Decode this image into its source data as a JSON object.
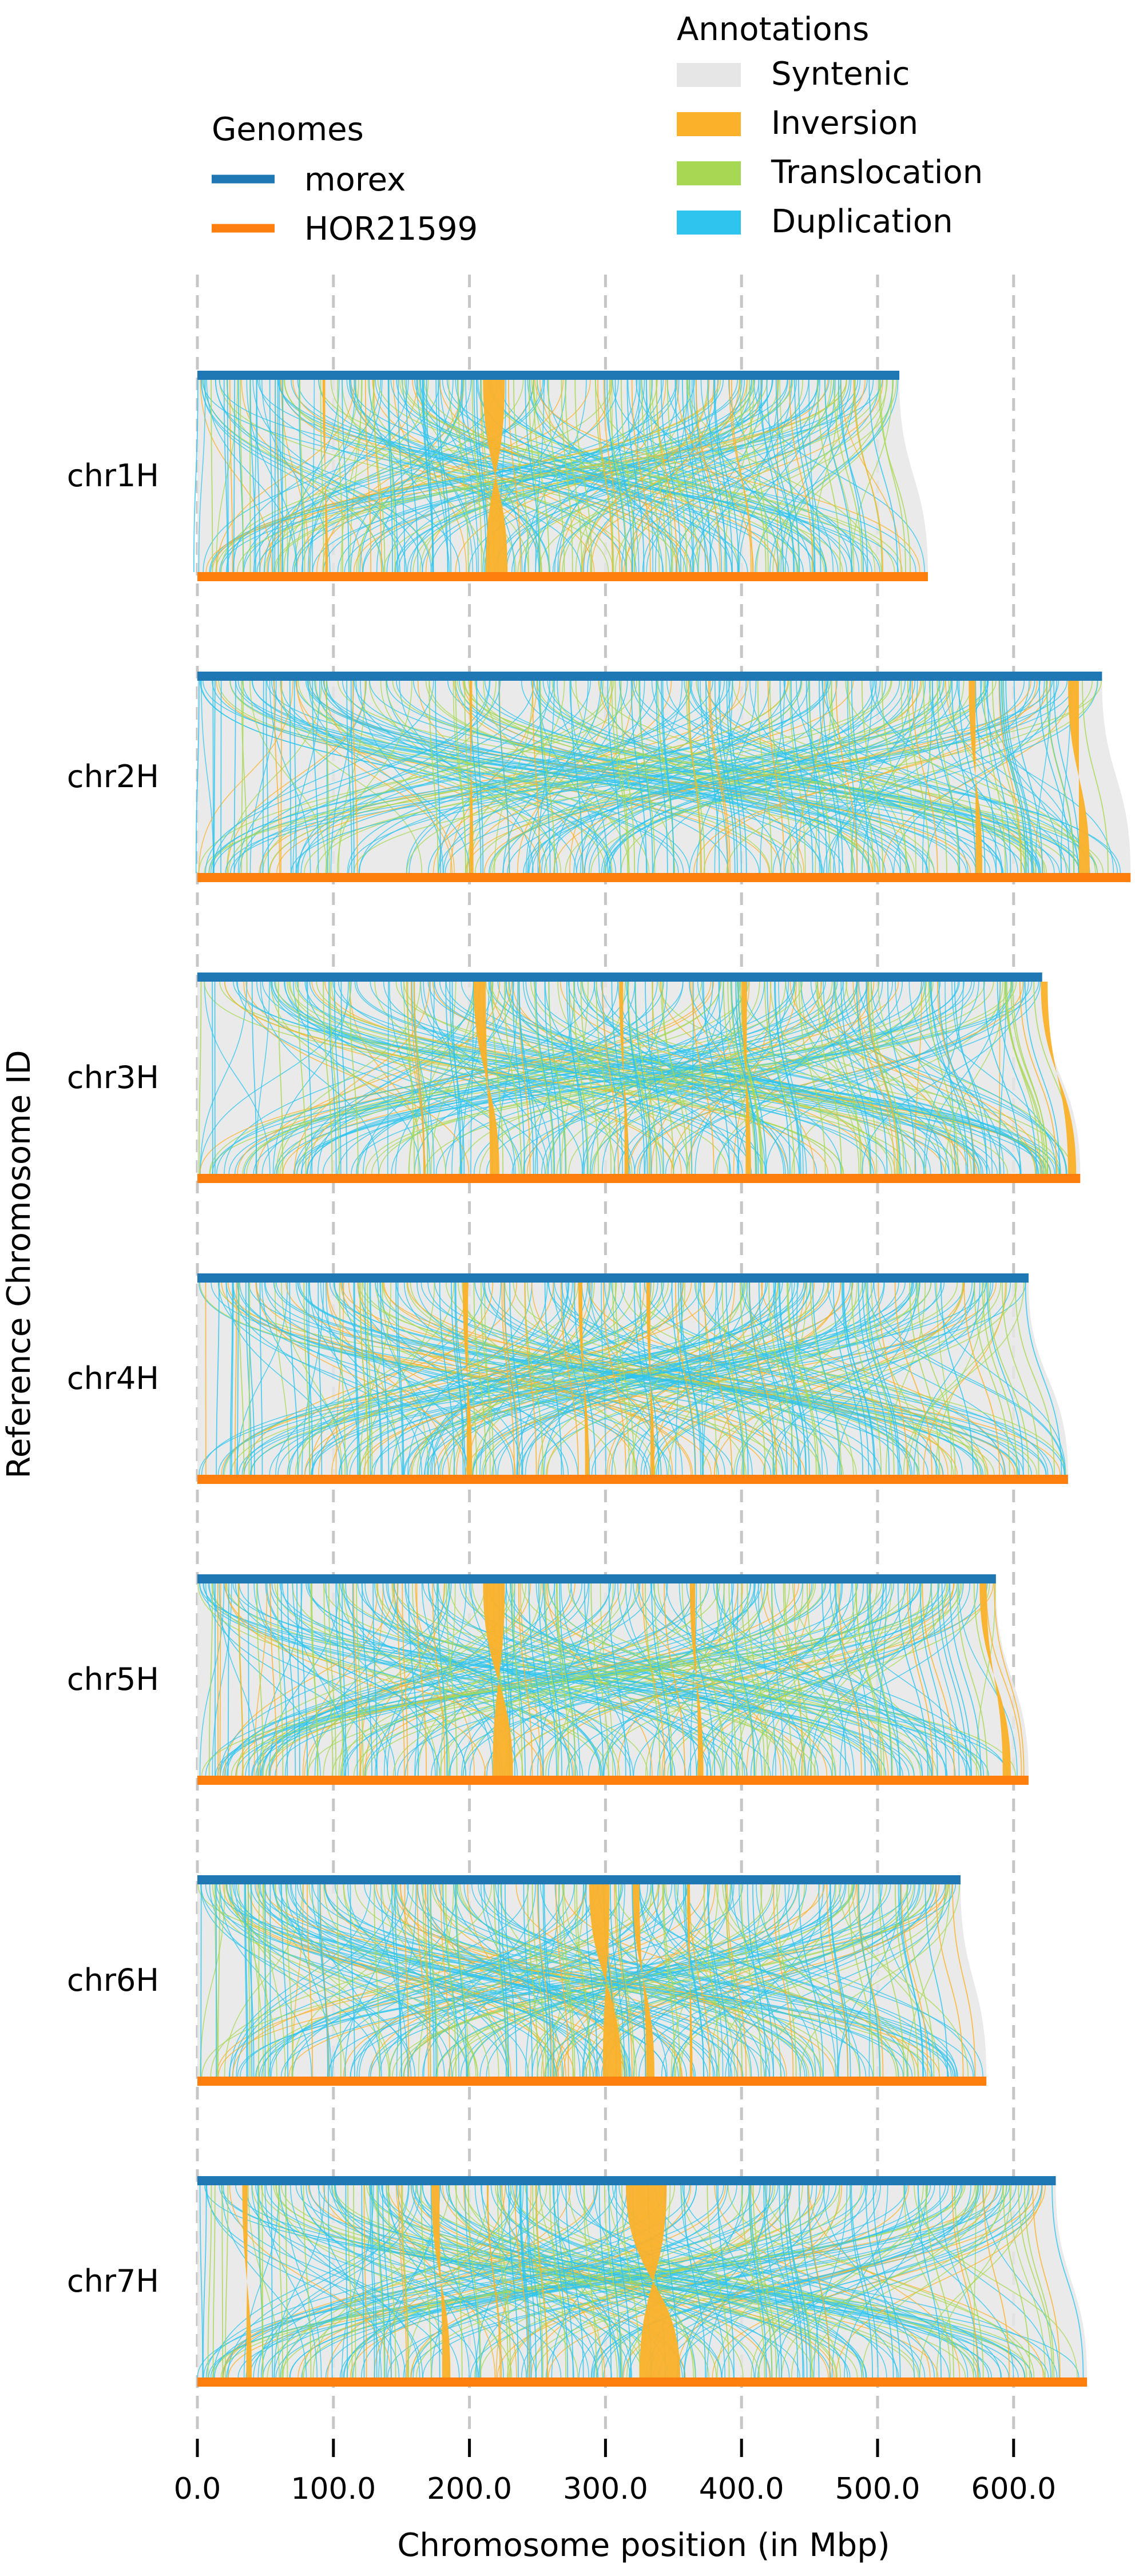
{
  "chart_data": {
    "type": "synteny",
    "xlabel": "Chromosome position (in Mbp)",
    "ylabel": "Reference Chromosome ID",
    "x_ticks": [
      0,
      100,
      200,
      300,
      400,
      500,
      600
    ],
    "x_tick_labels": [
      "0.0",
      "100.0",
      "200.0",
      "300.0",
      "400.0",
      "500.0",
      "600.0"
    ],
    "grid": "vertical dashed",
    "legend_genomes": {
      "title": "Genomes",
      "placement": "top-left",
      "entries": [
        {
          "name": "morex",
          "color": "#1f77b4"
        },
        {
          "name": "HOR21599",
          "color": "#ff7f0e"
        }
      ]
    },
    "legend_annotations": {
      "title": "Annotations",
      "placement": "top-right",
      "entries": [
        {
          "name": "Syntenic",
          "color": "#e6e6e6"
        },
        {
          "name": "Inversion",
          "color": "#fbb12a"
        },
        {
          "name": "Translocation",
          "color": "#a6d854"
        },
        {
          "name": "Duplication",
          "color": "#2ec4ee"
        }
      ]
    },
    "chromosomes": [
      {
        "id": "chr1H",
        "ref_length": 516,
        "qry_length": 537,
        "inversions": [
          {
            "ref": [
              210,
              226
            ],
            "qry": [
              212,
              228
            ]
          },
          {
            "ref": [
              92,
              94
            ],
            "qry": [
              94,
              96
            ]
          }
        ]
      },
      {
        "id": "chr2H",
        "ref_length": 665,
        "qry_length": 686,
        "inversions": [
          {
            "ref": [
              200,
              202
            ],
            "qry": [
              200,
              203
            ]
          },
          {
            "ref": [
              567,
              572
            ],
            "qry": [
              572,
              577
            ]
          },
          {
            "ref": [
              640,
              648
            ],
            "qry": [
              648,
              656
            ]
          }
        ]
      },
      {
        "id": "chr3H",
        "ref_length": 621,
        "qry_length": 649,
        "inversions": [
          {
            "ref": [
              203,
              212
            ],
            "qry": [
              215,
              222
            ]
          },
          {
            "ref": [
              310,
              313
            ],
            "qry": [
              314,
              317
            ]
          },
          {
            "ref": [
              400,
              404
            ],
            "qry": [
              403,
              407
            ]
          },
          {
            "ref": [
              620,
              625
            ],
            "qry": [
              640,
              646
            ]
          }
        ]
      },
      {
        "id": "chr4H",
        "ref_length": 611,
        "qry_length": 640,
        "inversions": [
          {
            "ref": [
              195,
              199
            ],
            "qry": [
              198,
              202
            ]
          },
          {
            "ref": [
              280,
              283
            ],
            "qry": [
              285,
              288
            ]
          },
          {
            "ref": [
              330,
              333
            ],
            "qry": [
              333,
              336
            ]
          }
        ]
      },
      {
        "id": "chr5H",
        "ref_length": 587,
        "qry_length": 611,
        "inversions": [
          {
            "ref": [
              210,
              226
            ],
            "qry": [
              217,
              232
            ]
          },
          {
            "ref": [
              362,
              366
            ],
            "qry": [
              368,
              372
            ]
          },
          {
            "ref": [
              575,
              580
            ],
            "qry": [
              592,
              598
            ]
          }
        ]
      },
      {
        "id": "chr6H",
        "ref_length": 561,
        "qry_length": 580,
        "inversions": [
          {
            "ref": [
              288,
              303
            ],
            "qry": [
              298,
              312
            ]
          },
          {
            "ref": [
              320,
              325
            ],
            "qry": [
              330,
              336
            ]
          },
          {
            "ref": [
              360,
              362
            ],
            "qry": [
              362,
              364
            ]
          }
        ]
      },
      {
        "id": "chr7H",
        "ref_length": 631,
        "qry_length": 654,
        "inversions": [
          {
            "ref": [
              315,
              345
            ],
            "qry": [
              325,
              355
            ]
          },
          {
            "ref": [
              172,
              178
            ],
            "qry": [
              180,
              186
            ]
          },
          {
            "ref": [
              33,
              37
            ],
            "qry": [
              36,
              40
            ]
          }
        ]
      }
    ]
  }
}
